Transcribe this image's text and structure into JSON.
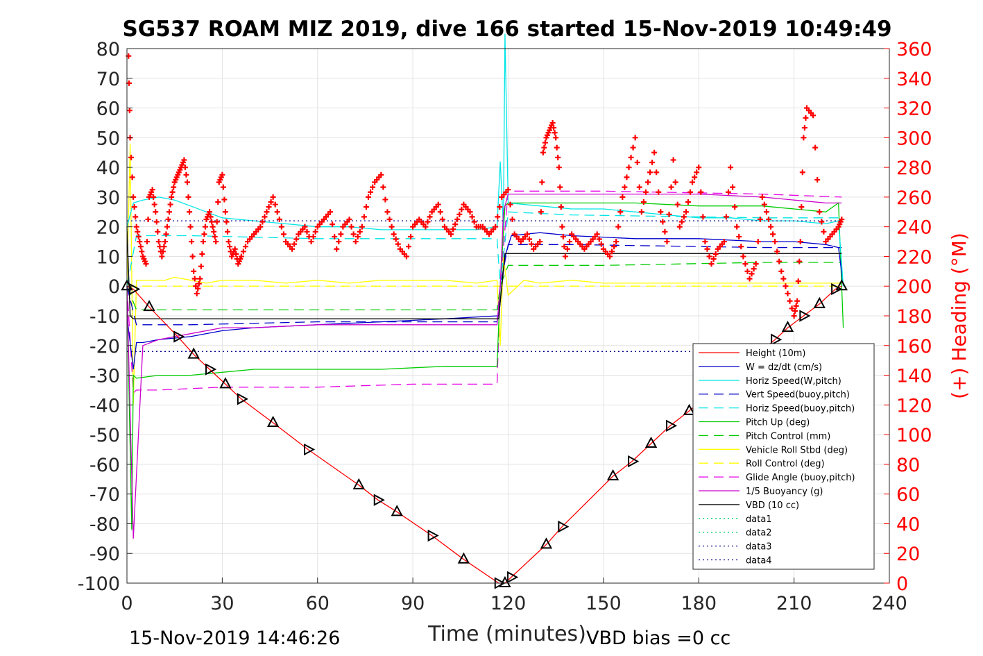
{
  "chart_data": {
    "type": "line",
    "title": "SG537 ROAM MIZ 2019, dive 166 started 15-Nov-2019 10:49:49",
    "xlabel": "Time (minutes)",
    "ylabel": "",
    "y2label": "(+) Heading (°M)",
    "xlim": [
      0,
      240
    ],
    "ylim": [
      -100,
      80
    ],
    "y2lim": [
      0,
      360
    ],
    "xticks": [
      "0",
      "30",
      "60",
      "90",
      "120",
      "150",
      "180",
      "210",
      "240"
    ],
    "yticks": [
      "80",
      "70",
      "60",
      "50",
      "40",
      "30",
      "20",
      "10",
      "0",
      "-10",
      "-20",
      "-30",
      "-40",
      "-50",
      "-60",
      "-70",
      "-80",
      "-90",
      "-100"
    ],
    "y2ticks": [
      "360",
      "340",
      "320",
      "300",
      "280",
      "260",
      "240",
      "220",
      "200",
      "180",
      "160",
      "140",
      "120",
      "100",
      "80",
      "60",
      "40",
      "20",
      "0"
    ],
    "grid": true,
    "legend_position": "bottom-right",
    "footer_left": "15-Nov-2019 14:46:26",
    "footer_right": "VBD bias =0 cc",
    "colors": {
      "height": "#ff0000",
      "w": "#0000cc",
      "hspeed": "#00e5e5",
      "pitch": "#00cc00",
      "roll": "#ffff00",
      "glide": "#e600e6",
      "buoy": "#cc00cc",
      "vbd": "#000000",
      "data": "#00cc66",
      "data34": "#000088",
      "heading": "#ff0000"
    },
    "series": [
      {
        "name": "Height (10m)",
        "style": "solid",
        "color": "#ff0000",
        "marker": "triangles",
        "x": [
          0,
          2,
          7,
          16,
          21,
          26,
          31,
          36,
          46,
          57,
          73,
          79,
          85,
          96,
          106,
          117,
          119,
          121,
          132,
          137,
          153,
          159,
          165,
          171,
          177,
          204,
          208,
          213,
          218,
          223,
          225
        ],
        "y": [
          0,
          -1,
          -7,
          -17,
          -23,
          -28,
          -33,
          -38,
          -46,
          -55,
          -67,
          -72,
          -76,
          -84,
          -92,
          -100,
          -100,
          -98,
          -87,
          -81,
          -64,
          -59,
          -53,
          -47,
          -42,
          -18,
          -14,
          -10,
          -6,
          -1,
          0
        ]
      },
      {
        "name": "W = dz/dt (cm/s)",
        "style": "solid",
        "color": "#0000cc",
        "x": [
          0,
          2,
          3,
          5,
          10,
          20,
          30,
          40,
          60,
          80,
          100,
          116.5,
          117,
          119,
          121,
          130,
          140,
          160,
          180,
          200,
          210,
          220,
          224,
          225.5
        ],
        "y": [
          -10,
          -28,
          -19,
          -19,
          -18,
          -17,
          -15,
          -14,
          -13,
          -12,
          -11,
          -10,
          -10,
          10,
          17,
          18,
          17,
          16,
          16,
          15,
          15,
          14,
          13,
          0
        ]
      },
      {
        "name": "Horiz Speed(W,pitch)",
        "style": "solid",
        "color": "#00e5e5",
        "x": [
          0,
          2,
          5,
          10,
          15,
          20,
          25,
          30,
          40,
          50,
          60,
          70,
          80,
          90,
          100,
          110,
          116.5,
          117.5,
          118.5,
          119,
          120,
          130,
          140,
          150,
          160,
          170,
          180,
          190,
          200,
          210,
          220,
          224,
          225.5
        ],
        "y": [
          20,
          28,
          29,
          30,
          29,
          27,
          25,
          23,
          22,
          21,
          20,
          20,
          19,
          19,
          19,
          19,
          20,
          42,
          20,
          85,
          28,
          27,
          26,
          26,
          25,
          24,
          23,
          23,
          22,
          22,
          21,
          22,
          0
        ]
      },
      {
        "name": "Vert Speed(buoy,pitch)",
        "style": "dashed",
        "color": "#0000cc",
        "x": [
          0,
          3,
          20,
          60,
          116.5,
          117.5,
          120,
          140,
          200,
          225
        ],
        "y": [
          0,
          -13,
          -13,
          -12,
          -12,
          0,
          14,
          14,
          13,
          13
        ]
      },
      {
        "name": "Horiz Speed(buoy,pitch)",
        "style": "dashed",
        "color": "#00e5e5",
        "x": [
          0,
          3,
          20,
          60,
          116.5,
          117.5,
          120,
          140,
          200,
          225
        ],
        "y": [
          0,
          17,
          17,
          16,
          16,
          0,
          25,
          24,
          23,
          23
        ]
      },
      {
        "name": "Pitch Up (deg)",
        "style": "solid",
        "color": "#00cc00",
        "x": [
          0,
          1.5,
          2,
          3,
          10,
          20,
          30,
          40,
          60,
          80,
          100,
          116.5,
          117.5,
          119,
          120,
          140,
          160,
          180,
          200,
          210,
          220,
          224,
          225.5
        ],
        "y": [
          0,
          -82,
          -30,
          -31,
          -30,
          -30,
          -29,
          -28,
          -28,
          -28,
          -27,
          -27,
          0,
          27,
          28,
          28,
          28,
          27,
          27,
          26,
          25,
          28,
          -14
        ]
      },
      {
        "name": "Pitch Control (mm)",
        "style": "dashed",
        "color": "#00cc00",
        "x": [
          0,
          3,
          10,
          60,
          116.5,
          117.5,
          120,
          150,
          200,
          225
        ],
        "y": [
          0,
          -8,
          -8,
          -8,
          -8,
          0,
          7,
          7,
          8,
          8
        ]
      },
      {
        "name": "Vehicle Roll Stbd (deg)",
        "style": "solid",
        "color": "#ffff00",
        "x": [
          0,
          1,
          2,
          3,
          12,
          15,
          25,
          30,
          40,
          50,
          60,
          70,
          80,
          90,
          100,
          110,
          116.5,
          117.5,
          118.5,
          120,
          125,
          130,
          140,
          150,
          160,
          170,
          180,
          190,
          200,
          210,
          220,
          225
        ],
        "y": [
          0,
          48,
          -40,
          2,
          2,
          3,
          1,
          2,
          2,
          1,
          2,
          1,
          2,
          2,
          2,
          1,
          2,
          -20,
          10,
          -3,
          2,
          1,
          2,
          1,
          1,
          1,
          1,
          1,
          1,
          1,
          1,
          1
        ]
      },
      {
        "name": "Roll Control (deg)",
        "style": "dashed",
        "color": "#ffff00",
        "x": [
          0,
          3,
          60,
          116.5,
          120,
          180,
          225
        ],
        "y": [
          0,
          0,
          0,
          0,
          0,
          0,
          0
        ]
      },
      {
        "name": "Glide Angle (buoy,pitch)",
        "style": "dashed",
        "color": "#e600e6",
        "x": [
          0,
          2,
          3,
          10,
          30,
          60,
          90,
          116.5,
          117.5,
          120,
          150,
          200,
          225
        ],
        "y": [
          0,
          -36,
          -35,
          -35,
          -34,
          -34,
          -33,
          -33,
          0,
          32,
          32,
          31,
          30
        ]
      },
      {
        "name": "1/5 Buoyancy (g)",
        "style": "solid",
        "color": "#cc00cc",
        "x": [
          0,
          2,
          5,
          10,
          20,
          30,
          40,
          60,
          80,
          100,
          116.5,
          117.5,
          118.5,
          120,
          140,
          160,
          180,
          200,
          210,
          220,
          225
        ],
        "y": [
          0,
          -85,
          -20,
          -18,
          -16,
          -14,
          -14,
          -13,
          -13,
          -13,
          -13,
          0,
          25,
          31,
          31,
          31,
          31,
          30,
          29,
          28,
          28
        ]
      },
      {
        "name": "VBD (10 cc)",
        "style": "solid",
        "color": "#000000",
        "x": [
          0,
          1,
          2,
          3,
          10,
          40,
          80,
          116.5,
          117,
          119,
          120,
          140,
          180,
          200,
          220,
          225
        ],
        "y": [
          20,
          -10,
          -11,
          -11,
          -11,
          -11,
          -11,
          -11,
          -11,
          11,
          11,
          11,
          11,
          11,
          11,
          11
        ]
      },
      {
        "name": "data1",
        "style": "dotted",
        "color": "#00cc66",
        "x": [],
        "y": []
      },
      {
        "name": "data2",
        "style": "dotted",
        "color": "#00cc66",
        "x": [],
        "y": []
      },
      {
        "name": "data3",
        "style": "dotted",
        "color": "#000088",
        "x": [
          0,
          225
        ],
        "y": [
          22,
          22
        ]
      },
      {
        "name": "data4",
        "style": "dotted",
        "color": "#000088",
        "x": [
          0,
          225
        ],
        "y": [
          -22,
          -22
        ]
      }
    ],
    "heading": {
      "name": "(+) Heading (°M)",
      "axis": "right",
      "marker": "+",
      "color": "#ff0000",
      "x": [
        0.5,
        1,
        2,
        3,
        4,
        5,
        6,
        7,
        8,
        9,
        10,
        11,
        12,
        13,
        14,
        15,
        16,
        17,
        18,
        19,
        20,
        21,
        22,
        23,
        24,
        25,
        26,
        27,
        28,
        29,
        30,
        31,
        32,
        33,
        34,
        35,
        36,
        38,
        40,
        42,
        44,
        46,
        48,
        50,
        52,
        54,
        56,
        58,
        60,
        62,
        64,
        66,
        68,
        70,
        72,
        74,
        76,
        78,
        80,
        82,
        84,
        86,
        88,
        90,
        92,
        94,
        96,
        98,
        100,
        102,
        104,
        106,
        108,
        110,
        112,
        114,
        116,
        118,
        120,
        122,
        124,
        126,
        128,
        130,
        131,
        132,
        133,
        134,
        135,
        136,
        137,
        138,
        140,
        142,
        144,
        146,
        148,
        150,
        152,
        154,
        156,
        158,
        160,
        162,
        164,
        166,
        168,
        170,
        172,
        174,
        176,
        178,
        180,
        182,
        184,
        186,
        188,
        190,
        192,
        194,
        196,
        198,
        200,
        202,
        204,
        206,
        208,
        210,
        211,
        212,
        213,
        214,
        216,
        218,
        220,
        222,
        224,
        225
      ],
      "y": [
        355,
        300,
        260,
        240,
        230,
        220,
        215,
        260,
        265,
        250,
        230,
        220,
        230,
        245,
        260,
        270,
        275,
        280,
        285,
        270,
        240,
        210,
        195,
        205,
        230,
        245,
        250,
        240,
        230,
        270,
        275,
        250,
        230,
        220,
        225,
        215,
        220,
        230,
        235,
        240,
        250,
        260,
        245,
        230,
        225,
        235,
        240,
        230,
        240,
        245,
        250,
        225,
        240,
        245,
        230,
        240,
        260,
        270,
        275,
        250,
        235,
        225,
        220,
        240,
        245,
        240,
        250,
        255,
        240,
        235,
        245,
        255,
        250,
        240,
        240,
        235,
        240,
        260,
        265,
        235,
        230,
        235,
        225,
        230,
        290,
        300,
        305,
        310,
        300,
        280,
        240,
        220,
        235,
        230,
        225,
        230,
        235,
        225,
        220,
        230,
        260,
        280,
        300,
        250,
        270,
        290,
        250,
        230,
        285,
        240,
        250,
        270,
        280,
        230,
        215,
        225,
        230,
        280,
        240,
        220,
        205,
        215,
        260,
        245,
        230,
        210,
        195,
        180,
        190,
        230,
        300,
        320,
        315,
        250,
        230,
        235,
        240,
        245
      ]
    }
  }
}
